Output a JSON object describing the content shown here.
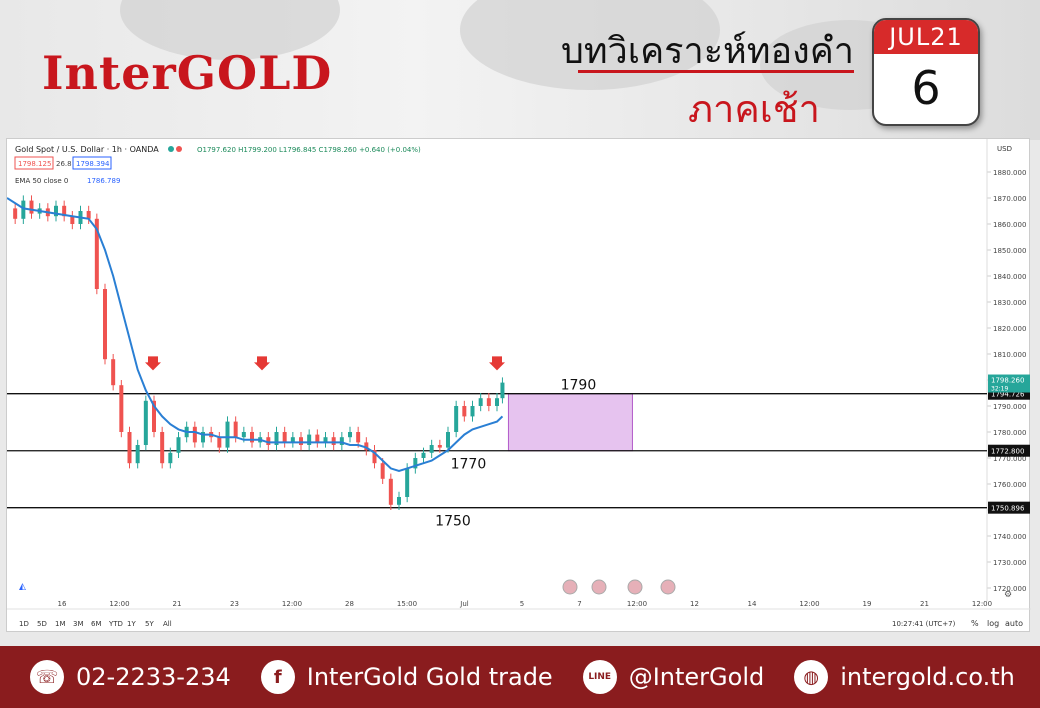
{
  "header": {
    "logo": "InterGOLD",
    "title": "บทวิเคราะห์ทองคำ",
    "subtitle": "ภาคเช้า",
    "calendar_month": "JUL21",
    "calendar_day": "6"
  },
  "chart_header": {
    "symbol": "Gold Spot / U.S. Dollar · 1h · OANDA",
    "ohlc": "O1797.620 H1799.200 L1796.845 C1798.260 +0.640 (+0.04%)",
    "bid": "1798.125",
    "spread": "26.8",
    "ask": "1798.394",
    "ema_label": "EMA 50 close 0",
    "ema_value": "1786.789",
    "currency": "USD"
  },
  "chart_data": {
    "type": "line",
    "series": [
      {
        "x": [
          0,
          3,
          6,
          9,
          12,
          15,
          18,
          21,
          24,
          27,
          30,
          33,
          36,
          39,
          42,
          45,
          48,
          51,
          54,
          57,
          60,
          63,
          66,
          69,
          72,
          75,
          78,
          81,
          84,
          87,
          90,
          93,
          96,
          99,
          102,
          105,
          108,
          111,
          114,
          117,
          120,
          123,
          126,
          129,
          132,
          135,
          138,
          141,
          144,
          147,
          150,
          153,
          156,
          159,
          162,
          165,
          168,
          171,
          174,
          177,
          180,
          182
        ],
        "y": [
          1866,
          1862,
          1869,
          1864,
          1866,
          1863,
          1867,
          1863,
          1860,
          1865,
          1862,
          1835,
          1808,
          1798,
          1780,
          1768,
          1775,
          1792,
          1780,
          1768,
          1772,
          1778,
          1782,
          1776,
          1780,
          1778,
          1774,
          1784,
          1778,
          1780,
          1776,
          1778,
          1775,
          1780,
          1776,
          1778,
          1775,
          1779,
          1776,
          1778,
          1775,
          1778,
          1780,
          1776,
          1773,
          1768,
          1762,
          1752,
          1755,
          1766,
          1770,
          1772,
          1775,
          1774,
          1780,
          1790,
          1786,
          1790,
          1793,
          1790,
          1793,
          1799
        ]
      },
      {
        "name": "EMA 50 close 0",
        "x": [
          0,
          6,
          12,
          18,
          24,
          30,
          33,
          36,
          39,
          42,
          45,
          48,
          51,
          54,
          57,
          60,
          63,
          66,
          69,
          72,
          75,
          78,
          81,
          84,
          87,
          90,
          93,
          96,
          99,
          102,
          105,
          108,
          111,
          114,
          117,
          120,
          123,
          126,
          129,
          132,
          135,
          138,
          141,
          144,
          147,
          150,
          153,
          156,
          159,
          162,
          165,
          168,
          171,
          174,
          177,
          180,
          182
        ],
        "y": [
          1870,
          1866,
          1865,
          1864,
          1863,
          1862,
          1858,
          1850,
          1840,
          1828,
          1816,
          1804,
          1796,
          1790,
          1786,
          1783,
          1781,
          1780,
          1780,
          1779,
          1779,
          1778,
          1778,
          1778,
          1777,
          1777,
          1777,
          1776,
          1776,
          1776,
          1776,
          1776,
          1776,
          1776,
          1776,
          1776,
          1776,
          1775,
          1775,
          1774,
          1772,
          1769,
          1766,
          1765,
          1766,
          1767,
          1768,
          1769,
          1771,
          1773,
          1776,
          1779,
          1781,
          1782,
          1783,
          1784,
          1786
        ]
      }
    ],
    "yticks": [
      "1720.000",
      "1730.000",
      "1740.000",
      "1750.000",
      "1760.000",
      "1770.000",
      "1780.000",
      "1790.000",
      "1800.000",
      "1810.000",
      "1820.000",
      "1830.000",
      "1840.000",
      "1850.000",
      "1860.000",
      "1870.000",
      "1880.000"
    ],
    "xticks": [
      "16",
      "12:00",
      "21",
      "23",
      "12:00",
      "28",
      "15:00",
      "Jul",
      "5",
      "7",
      "12:00",
      "12",
      "14",
      "12:00",
      "19",
      "21",
      "12:00"
    ],
    "ylim": [
      1715,
      1885
    ],
    "levels": [
      {
        "value": 1794.726,
        "tag": "1794.726",
        "label": "1790"
      },
      {
        "value": 1772.8,
        "tag": "1772.800",
        "label": "1770"
      },
      {
        "value": 1750.896,
        "tag": "1750.896",
        "label": "1750"
      }
    ],
    "last_price_tag": "1798.260",
    "countdown": "32:19",
    "zone": {
      "y_from": 1772.8,
      "y_to": 1794.726
    }
  },
  "toolbar": {
    "ranges": [
      "1D",
      "5D",
      "1M",
      "3M",
      "6M",
      "YTD",
      "1Y",
      "5Y",
      "All"
    ],
    "clock": "10:27:41 (UTC+7)",
    "percent": "%",
    "log": "log",
    "auto": "auto"
  },
  "footer": {
    "phone": "02-2233-234",
    "facebook": "InterGold Gold trade",
    "line": "@InterGold",
    "website": "intergold.co.th",
    "line_icon": "LINE"
  },
  "colors": {
    "brand_red": "#c8161d",
    "footer": "#8a1c1e",
    "ema": "#2a7fd4",
    "zone": "#e6c3ef"
  }
}
